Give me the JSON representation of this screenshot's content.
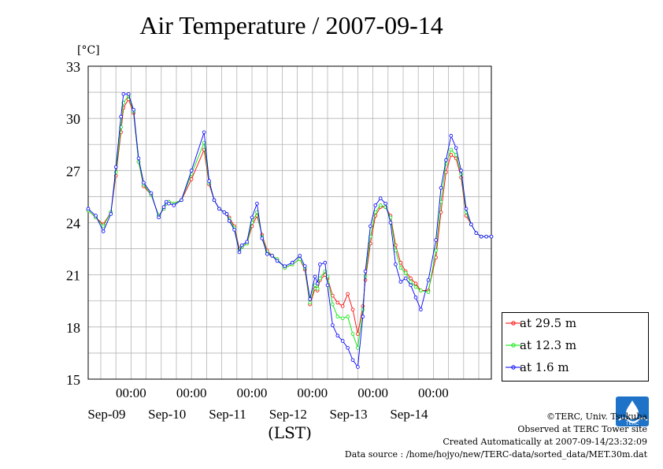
{
  "chart_data": {
    "type": "line",
    "title": "Air Temperature / 2007-09-14",
    "ylabel": "[°C]",
    "xlabel": "(LST)",
    "ylim": [
      15,
      33
    ],
    "yticks": [
      15,
      18,
      21,
      24,
      27,
      30,
      33
    ],
    "xlim": [
      "2007-09-08T07:00",
      "2007-09-14T23:00"
    ],
    "xticks": [
      {
        "time": "2007-09-09T00:00",
        "label_top": "00:00",
        "label_bottom": "Sep-09"
      },
      {
        "time": "2007-09-10T00:00",
        "label_top": "00:00",
        "label_bottom": "Sep-10"
      },
      {
        "time": "2007-09-11T00:00",
        "label_top": "00:00",
        "label_bottom": "Sep-11"
      },
      {
        "time": "2007-09-12T00:00",
        "label_top": "00:00",
        "label_bottom": "Sep-12"
      },
      {
        "time": "2007-09-13T00:00",
        "label_top": "00:00",
        "label_bottom": "Sep-13"
      },
      {
        "time": "2007-09-14T00:00",
        "label_top": "00:00",
        "label_bottom": "Sep-14"
      }
    ],
    "grid": true,
    "legend_position": "right",
    "series": [
      {
        "name": "at 29.5 m",
        "color": "#ff0000",
        "x": [
          "2007-09-08T07:00",
          "2007-09-08T10:00",
          "2007-09-08T13:00",
          "2007-09-08T16:00",
          "2007-09-08T18:00",
          "2007-09-08T20:00",
          "2007-09-08T21:00",
          "2007-09-08T23:00",
          "2007-09-09T01:00",
          "2007-09-09T03:00",
          "2007-09-09T05:00",
          "2007-09-09T08:00",
          "2007-09-09T11:00",
          "2007-09-09T13:00",
          "2007-09-09T14:00",
          "2007-09-09T15:00",
          "2007-09-09T17:00",
          "2007-09-09T20:00",
          "2007-09-10T00:00",
          "2007-09-10T05:00",
          "2007-09-10T07:00",
          "2007-09-10T09:00",
          "2007-09-10T11:00",
          "2007-09-10T13:00",
          "2007-09-10T14:00",
          "2007-09-10T15:00",
          "2007-09-10T17:00",
          "2007-09-10T19:00",
          "2007-09-10T20:00",
          "2007-09-10T22:00",
          "2007-09-11T00:00",
          "2007-09-11T02:00",
          "2007-09-11T04:00",
          "2007-09-11T06:00",
          "2007-09-11T08:00",
          "2007-09-11T10:00",
          "2007-09-11T13:00",
          "2007-09-11T16:00",
          "2007-09-11T19:00",
          "2007-09-11T21:00",
          "2007-09-11T23:00",
          "2007-09-12T01:00",
          "2007-09-12T02:00",
          "2007-09-12T03:00",
          "2007-09-12T05:00",
          "2007-09-12T06:00",
          "2007-09-12T08:00",
          "2007-09-12T10:00",
          "2007-09-12T12:00",
          "2007-09-12T14:00",
          "2007-09-12T16:00",
          "2007-09-12T18:00",
          "2007-09-12T20:00",
          "2007-09-12T21:00",
          "2007-09-12T23:00",
          "2007-09-13T01:00",
          "2007-09-13T03:00",
          "2007-09-13T05:00",
          "2007-09-13T07:00",
          "2007-09-13T09:00",
          "2007-09-13T11:00",
          "2007-09-13T13:00",
          "2007-09-13T15:00",
          "2007-09-13T17:00",
          "2007-09-13T19:00",
          "2007-09-13T22:00",
          "2007-09-14T01:00",
          "2007-09-14T03:00",
          "2007-09-14T05:00",
          "2007-09-14T07:00",
          "2007-09-14T09:00",
          "2007-09-14T11:00",
          "2007-09-14T13:00",
          "2007-09-14T15:00",
          "2007-09-14T17:00",
          "2007-09-14T19:00",
          "2007-09-14T21:00",
          "2007-09-14T23:00"
        ],
        "y": [
          24.7,
          24.3,
          23.9,
          24.6,
          26.7,
          29.2,
          30.6,
          31.1,
          30.3,
          27.5,
          26.1,
          25.6,
          24.4,
          24.8,
          25.1,
          25.2,
          25.1,
          25.3,
          26.5,
          28.2,
          26.2,
          25.3,
          24.8,
          24.6,
          24.5,
          24.3,
          23.8,
          22.5,
          22.6,
          22.8,
          23.8,
          24.4,
          23.3,
          22.4,
          22.1,
          21.9,
          21.4,
          21.6,
          21.9,
          21.3,
          19.3,
          20.2,
          20.1,
          20.7,
          21.0,
          20.8,
          19.8,
          19.4,
          19.2,
          19.9,
          19.0,
          17.6,
          19.2,
          20.7,
          22.8,
          24.4,
          24.9,
          24.9,
          24.4,
          22.7,
          21.7,
          21.2,
          20.8,
          20.5,
          20.1,
          20.1,
          22.0,
          24.6,
          26.9,
          27.9,
          27.7,
          26.6,
          24.4,
          23.9,
          23.4,
          23.2,
          23.2,
          23.2
        ]
      },
      {
        "name": "at 12.3 m",
        "color": "#00e600",
        "x": [
          "2007-09-08T07:00",
          "2007-09-08T10:00",
          "2007-09-08T13:00",
          "2007-09-08T16:00",
          "2007-09-08T18:00",
          "2007-09-08T20:00",
          "2007-09-08T21:00",
          "2007-09-08T23:00",
          "2007-09-09T01:00",
          "2007-09-09T03:00",
          "2007-09-09T05:00",
          "2007-09-09T08:00",
          "2007-09-09T11:00",
          "2007-09-09T13:00",
          "2007-09-09T14:00",
          "2007-09-09T15:00",
          "2007-09-09T17:00",
          "2007-09-09T20:00",
          "2007-09-10T00:00",
          "2007-09-10T05:00",
          "2007-09-10T07:00",
          "2007-09-10T09:00",
          "2007-09-10T11:00",
          "2007-09-10T13:00",
          "2007-09-10T14:00",
          "2007-09-10T15:00",
          "2007-09-10T17:00",
          "2007-09-10T19:00",
          "2007-09-10T20:00",
          "2007-09-10T22:00",
          "2007-09-11T00:00",
          "2007-09-11T02:00",
          "2007-09-11T04:00",
          "2007-09-11T06:00",
          "2007-09-11T08:00",
          "2007-09-11T10:00",
          "2007-09-11T13:00",
          "2007-09-11T16:00",
          "2007-09-11T19:00",
          "2007-09-11T21:00",
          "2007-09-11T23:00",
          "2007-09-12T01:00",
          "2007-09-12T02:00",
          "2007-09-12T03:00",
          "2007-09-12T05:00",
          "2007-09-12T06:00",
          "2007-09-12T08:00",
          "2007-09-12T10:00",
          "2007-09-12T12:00",
          "2007-09-12T14:00",
          "2007-09-12T16:00",
          "2007-09-12T18:00",
          "2007-09-12T20:00",
          "2007-09-12T21:00",
          "2007-09-12T23:00",
          "2007-09-13T01:00",
          "2007-09-13T03:00",
          "2007-09-13T05:00",
          "2007-09-13T07:00",
          "2007-09-13T09:00",
          "2007-09-13T11:00",
          "2007-09-13T13:00",
          "2007-09-13T15:00",
          "2007-09-13T17:00",
          "2007-09-13T19:00",
          "2007-09-13T22:00",
          "2007-09-14T01:00",
          "2007-09-14T03:00",
          "2007-09-14T05:00",
          "2007-09-14T07:00",
          "2007-09-14T09:00",
          "2007-09-14T11:00",
          "2007-09-14T13:00",
          "2007-09-14T15:00",
          "2007-09-14T17:00",
          "2007-09-14T19:00",
          "2007-09-14T21:00",
          "2007-09-14T23:00"
        ],
        "y": [
          24.7,
          24.3,
          23.8,
          24.6,
          26.9,
          29.5,
          30.9,
          31.3,
          30.4,
          27.5,
          26.2,
          25.6,
          24.4,
          24.8,
          25.1,
          25.2,
          25.1,
          25.3,
          26.8,
          28.6,
          26.3,
          25.3,
          24.8,
          24.6,
          24.5,
          24.2,
          23.7,
          22.4,
          22.6,
          22.8,
          24.0,
          24.6,
          23.2,
          22.3,
          22.1,
          21.9,
          21.4,
          21.6,
          21.9,
          21.4,
          19.4,
          20.4,
          20.2,
          20.8,
          21.2,
          20.9,
          19.3,
          18.6,
          18.5,
          18.6,
          17.6,
          16.8,
          19.0,
          20.9,
          23.2,
          24.6,
          25.0,
          24.9,
          24.3,
          22.4,
          21.4,
          21.1,
          20.6,
          20.3,
          20.1,
          20.0,
          22.4,
          25.2,
          27.4,
          28.2,
          27.9,
          26.8,
          24.6,
          23.9,
          23.4,
          23.2,
          23.2,
          23.2
        ]
      },
      {
        "name": "at 1.6 m",
        "color": "#0000ff",
        "x": [
          "2007-09-08T07:00",
          "2007-09-08T10:00",
          "2007-09-08T13:00",
          "2007-09-08T16:00",
          "2007-09-08T18:00",
          "2007-09-08T20:00",
          "2007-09-08T21:00",
          "2007-09-08T23:00",
          "2007-09-09T01:00",
          "2007-09-09T03:00",
          "2007-09-09T05:00",
          "2007-09-09T08:00",
          "2007-09-09T11:00",
          "2007-09-09T13:00",
          "2007-09-09T14:00",
          "2007-09-09T15:00",
          "2007-09-09T17:00",
          "2007-09-09T20:00",
          "2007-09-10T00:00",
          "2007-09-10T05:00",
          "2007-09-10T07:00",
          "2007-09-10T09:00",
          "2007-09-10T11:00",
          "2007-09-10T13:00",
          "2007-09-10T14:00",
          "2007-09-10T15:00",
          "2007-09-10T17:00",
          "2007-09-10T19:00",
          "2007-09-10T20:00",
          "2007-09-10T22:00",
          "2007-09-11T00:00",
          "2007-09-11T02:00",
          "2007-09-11T04:00",
          "2007-09-11T06:00",
          "2007-09-11T08:00",
          "2007-09-11T10:00",
          "2007-09-11T13:00",
          "2007-09-11T16:00",
          "2007-09-11T19:00",
          "2007-09-11T21:00",
          "2007-09-11T23:00",
          "2007-09-12T01:00",
          "2007-09-12T02:00",
          "2007-09-12T03:00",
          "2007-09-12T05:00",
          "2007-09-12T06:00",
          "2007-09-12T08:00",
          "2007-09-12T10:00",
          "2007-09-12T12:00",
          "2007-09-12T14:00",
          "2007-09-12T16:00",
          "2007-09-12T18:00",
          "2007-09-12T20:00",
          "2007-09-12T21:00",
          "2007-09-12T23:00",
          "2007-09-13T01:00",
          "2007-09-13T03:00",
          "2007-09-13T05:00",
          "2007-09-13T07:00",
          "2007-09-13T09:00",
          "2007-09-13T11:00",
          "2007-09-13T13:00",
          "2007-09-13T15:00",
          "2007-09-13T17:00",
          "2007-09-13T19:00",
          "2007-09-13T22:00",
          "2007-09-14T01:00",
          "2007-09-14T03:00",
          "2007-09-14T05:00",
          "2007-09-14T07:00",
          "2007-09-14T09:00",
          "2007-09-14T11:00",
          "2007-09-14T13:00",
          "2007-09-14T15:00",
          "2007-09-14T17:00",
          "2007-09-14T19:00",
          "2007-09-14T21:00",
          "2007-09-14T23:00"
        ],
        "y": [
          24.8,
          24.4,
          23.5,
          24.5,
          27.2,
          30.1,
          31.4,
          31.4,
          30.5,
          27.7,
          26.3,
          25.7,
          24.3,
          24.9,
          25.2,
          25.1,
          25.0,
          25.3,
          27.0,
          29.2,
          26.4,
          25.3,
          24.8,
          24.6,
          24.5,
          24.1,
          23.6,
          22.3,
          22.7,
          22.9,
          24.3,
          25.1,
          23.1,
          22.2,
          22.1,
          21.8,
          21.5,
          21.7,
          22.1,
          21.5,
          19.6,
          20.9,
          20.5,
          21.6,
          21.7,
          20.4,
          18.1,
          17.5,
          17.2,
          16.8,
          16.1,
          15.7,
          18.6,
          21.2,
          23.8,
          25.0,
          25.4,
          25.1,
          24.0,
          21.6,
          20.6,
          20.8,
          20.4,
          19.7,
          19.0,
          20.7,
          23.0,
          26.0,
          27.6,
          29.0,
          28.3,
          27.0,
          24.8,
          23.9,
          23.4,
          23.2,
          23.2,
          23.2
        ]
      }
    ]
  },
  "credits": {
    "copyright": "©TERC, Univ. Tsukuba",
    "observed": "Observed at TERC Tower site",
    "created": "Created Automatically at 2007-09-14/23:32:09",
    "source": "Data source : /home/hojyo/new/TERC-data/sorted_data/MET.30m.dat"
  },
  "logo": {
    "text": "TERC",
    "color": "#1e73c8"
  }
}
